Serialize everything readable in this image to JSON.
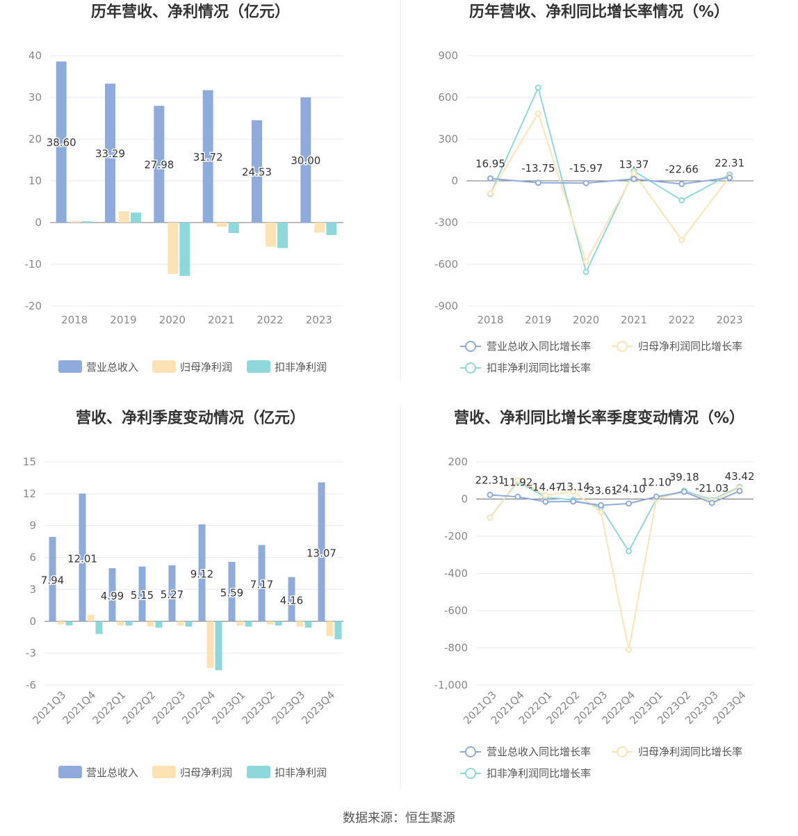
{
  "source": "数据来源：恒生聚源",
  "chart_data": [
    {
      "type": "bar",
      "title": "历年营收、净利情况（亿元）",
      "categories": [
        "2018",
        "2019",
        "2020",
        "2021",
        "2022",
        "2023"
      ],
      "ylim": [
        -20,
        40
      ],
      "yticks": [
        40,
        30,
        20,
        10,
        0,
        -10,
        -20
      ],
      "series": [
        {
          "name": "营业总收入",
          "values": [
            38.6,
            33.29,
            27.98,
            31.72,
            24.53,
            30.0
          ],
          "labels": [
            "38.60",
            "33.29",
            "27.98",
            "31.72",
            "24.53",
            "30.00"
          ],
          "color": "#8eabdb"
        },
        {
          "name": "归母净利润",
          "values": [
            0.4,
            2.7,
            -12.3,
            -1.0,
            -5.8,
            -2.4
          ],
          "color": "#fde2b4"
        },
        {
          "name": "扣非净利润",
          "values": [
            0.3,
            2.4,
            -12.8,
            -2.5,
            -6.1,
            -3.0
          ],
          "color": "#8ed8dc"
        }
      ],
      "grid": true,
      "legend": "bottom"
    },
    {
      "type": "line",
      "title": "历年营收、净利同比增长率情况（%）",
      "categories": [
        "2018",
        "2019",
        "2020",
        "2021",
        "2022",
        "2023"
      ],
      "ylim": [
        -900,
        900
      ],
      "yticks": [
        900,
        600,
        300,
        0,
        -300,
        -600,
        -900
      ],
      "series": [
        {
          "name": "营业总收入同比增长率",
          "values": [
            16.95,
            -13.75,
            -15.97,
            13.37,
            -22.66,
            22.31
          ],
          "labels": [
            "16.95",
            "-13.75",
            "-15.97",
            "13.37",
            "-22.66",
            "22.31"
          ],
          "color": "#8eabdb"
        },
        {
          "name": "归母净利润同比增长率",
          "values": [
            -90,
            485,
            -580,
            55,
            -425,
            30
          ],
          "color": "#fde2b4"
        },
        {
          "name": "扣非净利润同比增长率",
          "values": [
            -95,
            670,
            -655,
            70,
            -140,
            45
          ],
          "color": "#8ed8dc"
        }
      ],
      "grid": true,
      "legend": "bottom"
    },
    {
      "type": "bar",
      "title": "营收、净利季度变动情况（亿元）",
      "categories": [
        "2021Q3",
        "2021Q4",
        "2022Q1",
        "2022Q2",
        "2022Q3",
        "2022Q4",
        "2023Q1",
        "2023Q2",
        "2023Q3",
        "2023Q4"
      ],
      "ylim": [
        -6,
        15
      ],
      "yticks": [
        15,
        12,
        9,
        6,
        3,
        0,
        -3,
        -6
      ],
      "series": [
        {
          "name": "营业总收入",
          "values": [
            7.94,
            12.01,
            4.99,
            5.15,
            5.27,
            9.12,
            5.59,
            7.17,
            4.16,
            13.07
          ],
          "labels": [
            "7.94",
            "12.01",
            "4.99",
            "5.15",
            "5.27",
            "9.12",
            "5.59",
            "7.17",
            "4.16",
            "13.07"
          ],
          "color": "#8eabdb"
        },
        {
          "name": "归母净利润",
          "values": [
            -0.3,
            0.6,
            -0.4,
            -0.5,
            -0.4,
            -4.4,
            -0.4,
            -0.3,
            -0.5,
            -1.4
          ],
          "color": "#fde2b4"
        },
        {
          "name": "扣非净利润",
          "values": [
            -0.4,
            -1.2,
            -0.4,
            -0.6,
            -0.5,
            -4.6,
            -0.5,
            -0.4,
            -0.6,
            -1.7
          ],
          "color": "#8ed8dc"
        }
      ],
      "grid": true,
      "legend": "bottom"
    },
    {
      "type": "line",
      "title": "营收、净利同比增长率季度变动情况（%）",
      "categories": [
        "2021Q3",
        "2021Q4",
        "2022Q1",
        "2022Q2",
        "2022Q3",
        "2022Q4",
        "2023Q1",
        "2023Q2",
        "2023Q3",
        "2023Q4"
      ],
      "ylim": [
        -1000,
        200
      ],
      "yticks": [
        200,
        0,
        -200,
        -400,
        -600,
        -800,
        -1000
      ],
      "ytick_labels": [
        "200",
        "0",
        "-200",
        "-400",
        "-600",
        "-800",
        "-1,000"
      ],
      "series": [
        {
          "name": "营业总收入同比增长率",
          "values": [
            22.31,
            11.92,
            -14.47,
            -13.14,
            -33.61,
            -24.1,
            12.1,
            39.18,
            -21.03,
            43.42
          ],
          "labels": [
            "22.31",
            "11.92",
            "-14.47",
            "-13.14",
            "-33.61",
            "-24.10",
            "12.10",
            "39.18",
            "-21.03",
            "43.42"
          ],
          "color": "#8eabdb"
        },
        {
          "name": "归母净利润同比增长率",
          "values": [
            -100,
            100,
            20,
            40,
            -70,
            -810,
            0,
            40,
            -10,
            60
          ],
          "color": "#fde2b4"
        },
        {
          "name": "扣非净利润同比增长率",
          "values": [
            -100,
            95,
            10,
            -5,
            -45,
            -280,
            0,
            45,
            -5,
            65
          ],
          "color": "#8ed8dc"
        }
      ],
      "grid": true,
      "legend": "bottom"
    }
  ]
}
